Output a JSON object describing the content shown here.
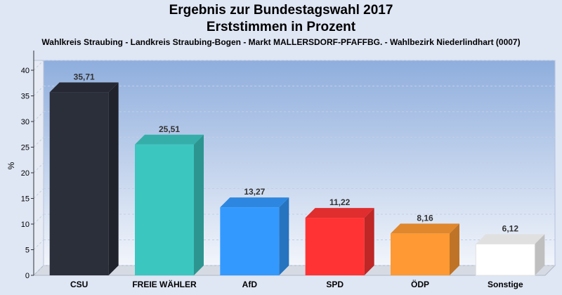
{
  "chart_data": {
    "type": "bar",
    "title": "Ergebnis zur Bundestagswahl 2017",
    "subtitle": "Erststimmen in Prozent",
    "caption": "Wahlkreis Straubing - Landkreis Straubing-Bogen - Markt MALLERSDORF-PFAFFBG. - Wahlbezirk Niederlindhart (0007)",
    "ylabel": "%",
    "xlabel": "",
    "ylim": [
      0,
      40
    ],
    "yticks": [
      "0",
      "5",
      "10",
      "15",
      "20",
      "25",
      "30",
      "35",
      "40"
    ],
    "grid": true,
    "categories": [
      "CSU",
      "FREIE WÄHLER",
      "AfD",
      "SPD",
      "ÖDP",
      "Sonstige"
    ],
    "values": [
      35.71,
      25.51,
      13.27,
      11.22,
      8.16,
      6.12
    ],
    "value_labels": [
      "35,71",
      "25,51",
      "13,27",
      "11,22",
      "8,16",
      "6,12"
    ],
    "colors": [
      "#2b2f3a",
      "#3cc6c0",
      "#3399ff",
      "#ff3333",
      "#ff9933",
      "#ffffff"
    ]
  }
}
